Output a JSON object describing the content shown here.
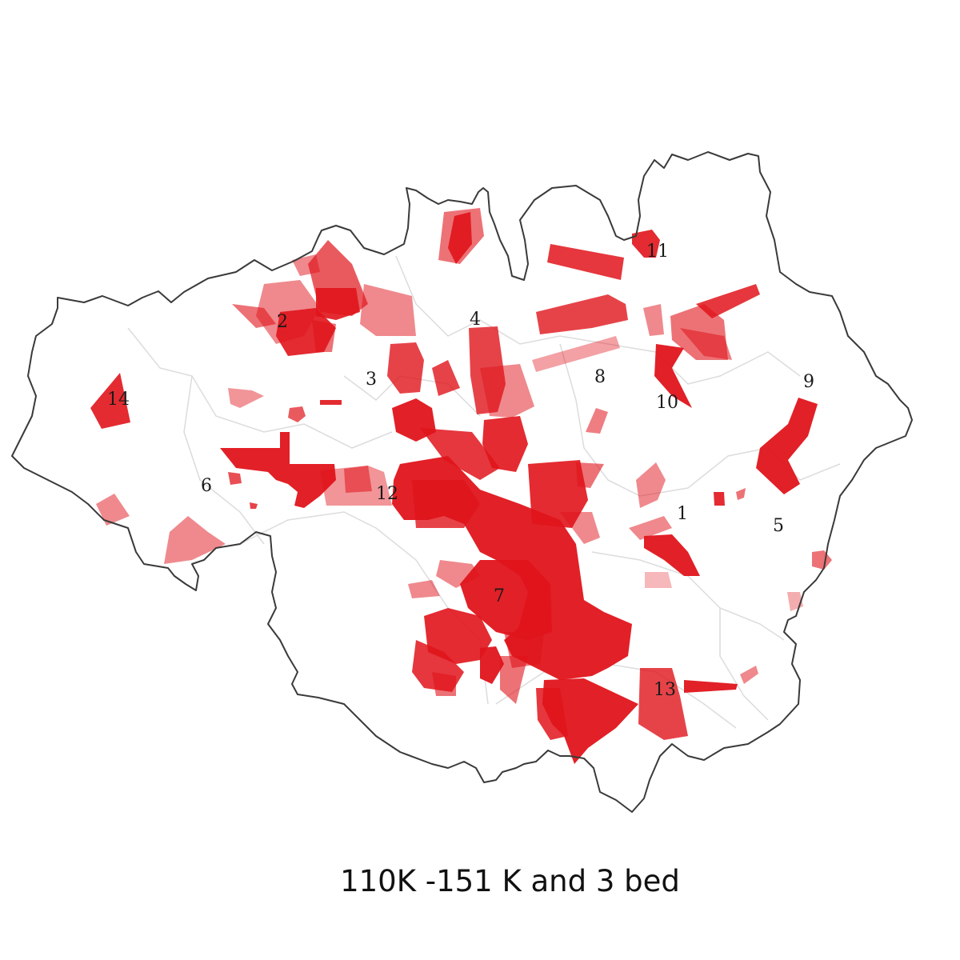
{
  "caption": "110K -151 K and 3 bed",
  "colors": {
    "highlight": "#e0141b",
    "boundary": "#3a3a3a",
    "inner_boundary": "#dcdcdc",
    "background": "#ffffff"
  },
  "district_labels": [
    "1",
    "2",
    "3",
    "4",
    "5",
    "6",
    "7",
    "8",
    "9",
    "10",
    "11",
    "12",
    "13",
    "14"
  ]
}
